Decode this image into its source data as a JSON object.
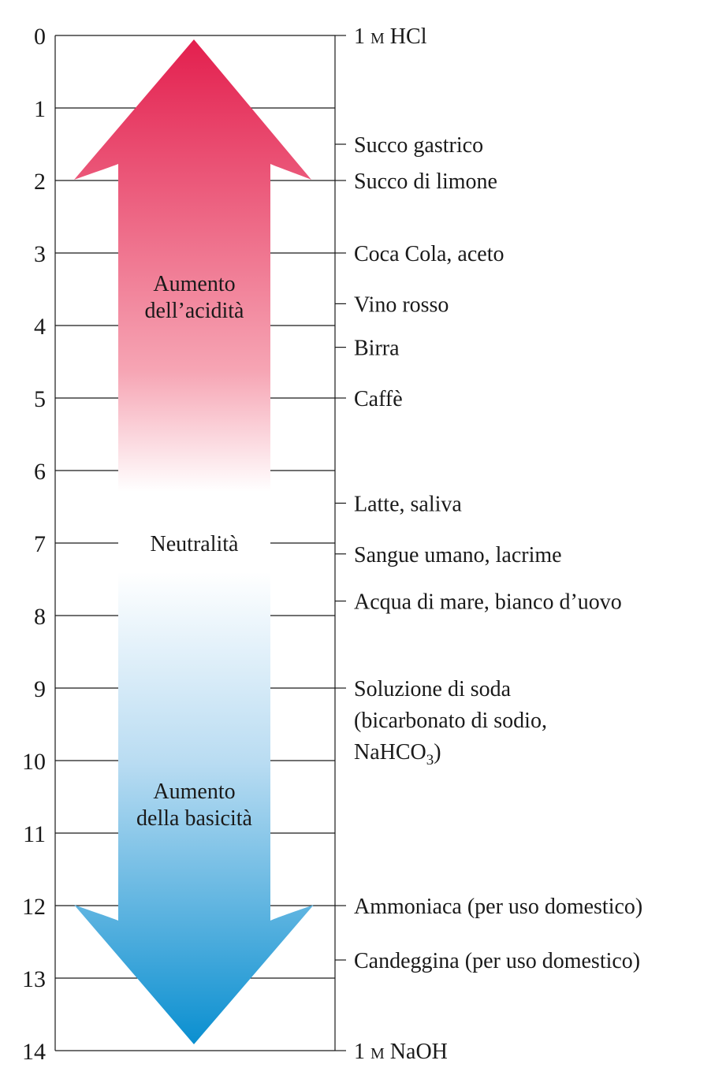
{
  "scale": {
    "min": 0,
    "max": 14,
    "ticks": [
      "0",
      "1",
      "2",
      "3",
      "4",
      "5",
      "6",
      "7",
      "8",
      "9",
      "10",
      "11",
      "12",
      "13",
      "14"
    ]
  },
  "arrow": {
    "top_color": "#e31f4e",
    "middle_color": "#ffffff",
    "bottom_color": "#0a8fd0"
  },
  "regions": [
    {
      "lines": [
        "Aumento",
        "dell’acidità"
      ],
      "value": 3.6
    },
    {
      "lines": [
        "Neutralità"
      ],
      "value": 7.0
    },
    {
      "lines": [
        "Aumento",
        "della basicità"
      ],
      "value": 10.6
    }
  ],
  "substances": [
    {
      "value": 0,
      "lines": [
        {
          "parts": [
            {
              "t": "1 "
            },
            {
              "t": "M",
              "sc": true
            },
            {
              "t": "  HCl"
            }
          ]
        }
      ]
    },
    {
      "value": 1.5,
      "lines": [
        {
          "parts": [
            {
              "t": "Succo gastrico"
            }
          ]
        }
      ]
    },
    {
      "value": 2.0,
      "lines": [
        {
          "parts": [
            {
              "t": "Succo di limone"
            }
          ]
        }
      ]
    },
    {
      "value": 3.0,
      "lines": [
        {
          "parts": [
            {
              "t": "Coca Cola, aceto"
            }
          ]
        }
      ]
    },
    {
      "value": 3.7,
      "lines": [
        {
          "parts": [
            {
              "t": "Vino rosso"
            }
          ]
        }
      ]
    },
    {
      "value": 4.3,
      "lines": [
        {
          "parts": [
            {
              "t": "Birra"
            }
          ]
        }
      ]
    },
    {
      "value": 5.0,
      "lines": [
        {
          "parts": [
            {
              "t": "Caffè"
            }
          ]
        }
      ]
    },
    {
      "value": 6.45,
      "lines": [
        {
          "parts": [
            {
              "t": "Latte, saliva"
            }
          ]
        }
      ]
    },
    {
      "value": 7.15,
      "lines": [
        {
          "parts": [
            {
              "t": "Sangue umano, lacrime"
            }
          ]
        }
      ]
    },
    {
      "value": 7.8,
      "lines": [
        {
          "parts": [
            {
              "t": "Acqua di mare, bianco d’uovo"
            }
          ]
        }
      ]
    },
    {
      "value": 9.0,
      "lines": [
        {
          "parts": [
            {
              "t": "Soluzione di soda"
            }
          ]
        },
        {
          "parts": [
            {
              "t": "(bicarbonato di sodio,"
            }
          ]
        },
        {
          "parts": [
            {
              "t": "NaHCO"
            },
            {
              "t": "3",
              "sub": true
            },
            {
              "t": ")"
            }
          ]
        }
      ]
    },
    {
      "value": 12.0,
      "lines": [
        {
          "parts": [
            {
              "t": "Ammoniaca (per uso domestico)"
            }
          ]
        }
      ]
    },
    {
      "value": 12.75,
      "lines": [
        {
          "parts": [
            {
              "t": "Candeggina (per uso domestico)"
            }
          ]
        }
      ]
    },
    {
      "value": 14,
      "lines": [
        {
          "parts": [
            {
              "t": "1 "
            },
            {
              "t": "M",
              "sc": true
            },
            {
              "t": "  NaOH"
            }
          ]
        }
      ]
    }
  ]
}
